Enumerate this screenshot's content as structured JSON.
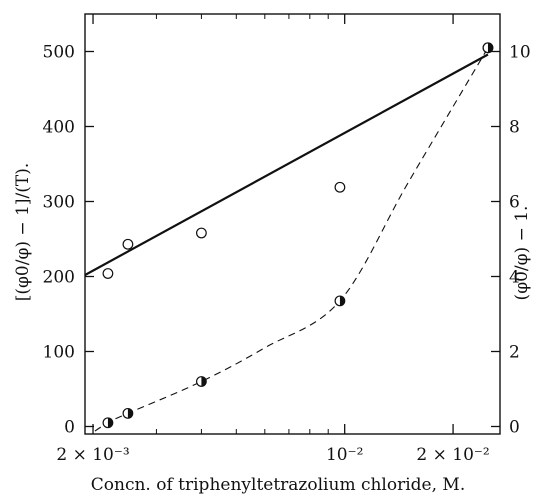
{
  "chart_data": {
    "type": "scatter",
    "title": "",
    "xlabel": "Concn. of triphenyltetrazolium chloride, M.",
    "ylabel_left": "[(φ0/φ) − 1]/(T).",
    "ylabel_right": "(φ0/φ) − 1.",
    "x_scale": "log",
    "xlim": [
      0.0019,
      0.027
    ],
    "ylim_left": [
      -10,
      550
    ],
    "ylim_right": [
      -0.2,
      11
    ],
    "x_tick_labels": [
      "2 × 10⁻³",
      "10⁻²",
      "2 × 10⁻²"
    ],
    "x_tick_values": [
      0.002,
      0.01,
      0.02
    ],
    "x_minor_tick_values": [
      0.003,
      0.004,
      0.005,
      0.006,
      0.007,
      0.008,
      0.009
    ],
    "y_left_ticks": [
      0,
      100,
      200,
      300,
      400,
      500
    ],
    "y_left_tick_labels": [
      "0",
      "100",
      "200",
      "300",
      "400",
      "500"
    ],
    "y_right_ticks": [
      0,
      2,
      4,
      6,
      8,
      10
    ],
    "y_right_tick_labels": [
      "0",
      "2",
      "4",
      "6",
      "8",
      "10"
    ],
    "grid": false,
    "series": [
      {
        "axis": "left",
        "marker": "open-circle",
        "x": [
          0.0022,
          0.0025,
          0.004,
          0.0097,
          0.025
        ],
        "y": [
          204,
          243,
          258,
          319,
          505
        ]
      },
      {
        "axis": "right",
        "marker": "half-filled-circle",
        "x": [
          0.0022,
          0.0025,
          0.004,
          0.0097,
          0.025
        ],
        "y": [
          0.1,
          0.35,
          1.2,
          3.35,
          10.1
        ]
      }
    ],
    "fit_lines": [
      {
        "axis": "left",
        "style": "solid",
        "x": [
          0.0019,
          0.025
        ],
        "y": [
          202,
          496
        ]
      },
      {
        "axis": "right",
        "style": "dashed",
        "x": [
          0.0019,
          0.0022,
          0.0025,
          0.004,
          0.006,
          0.0097,
          0.015,
          0.025
        ],
        "y": [
          -0.3,
          0.1,
          0.35,
          1.2,
          2.1,
          3.35,
          6.5,
          10.1
        ]
      }
    ]
  }
}
